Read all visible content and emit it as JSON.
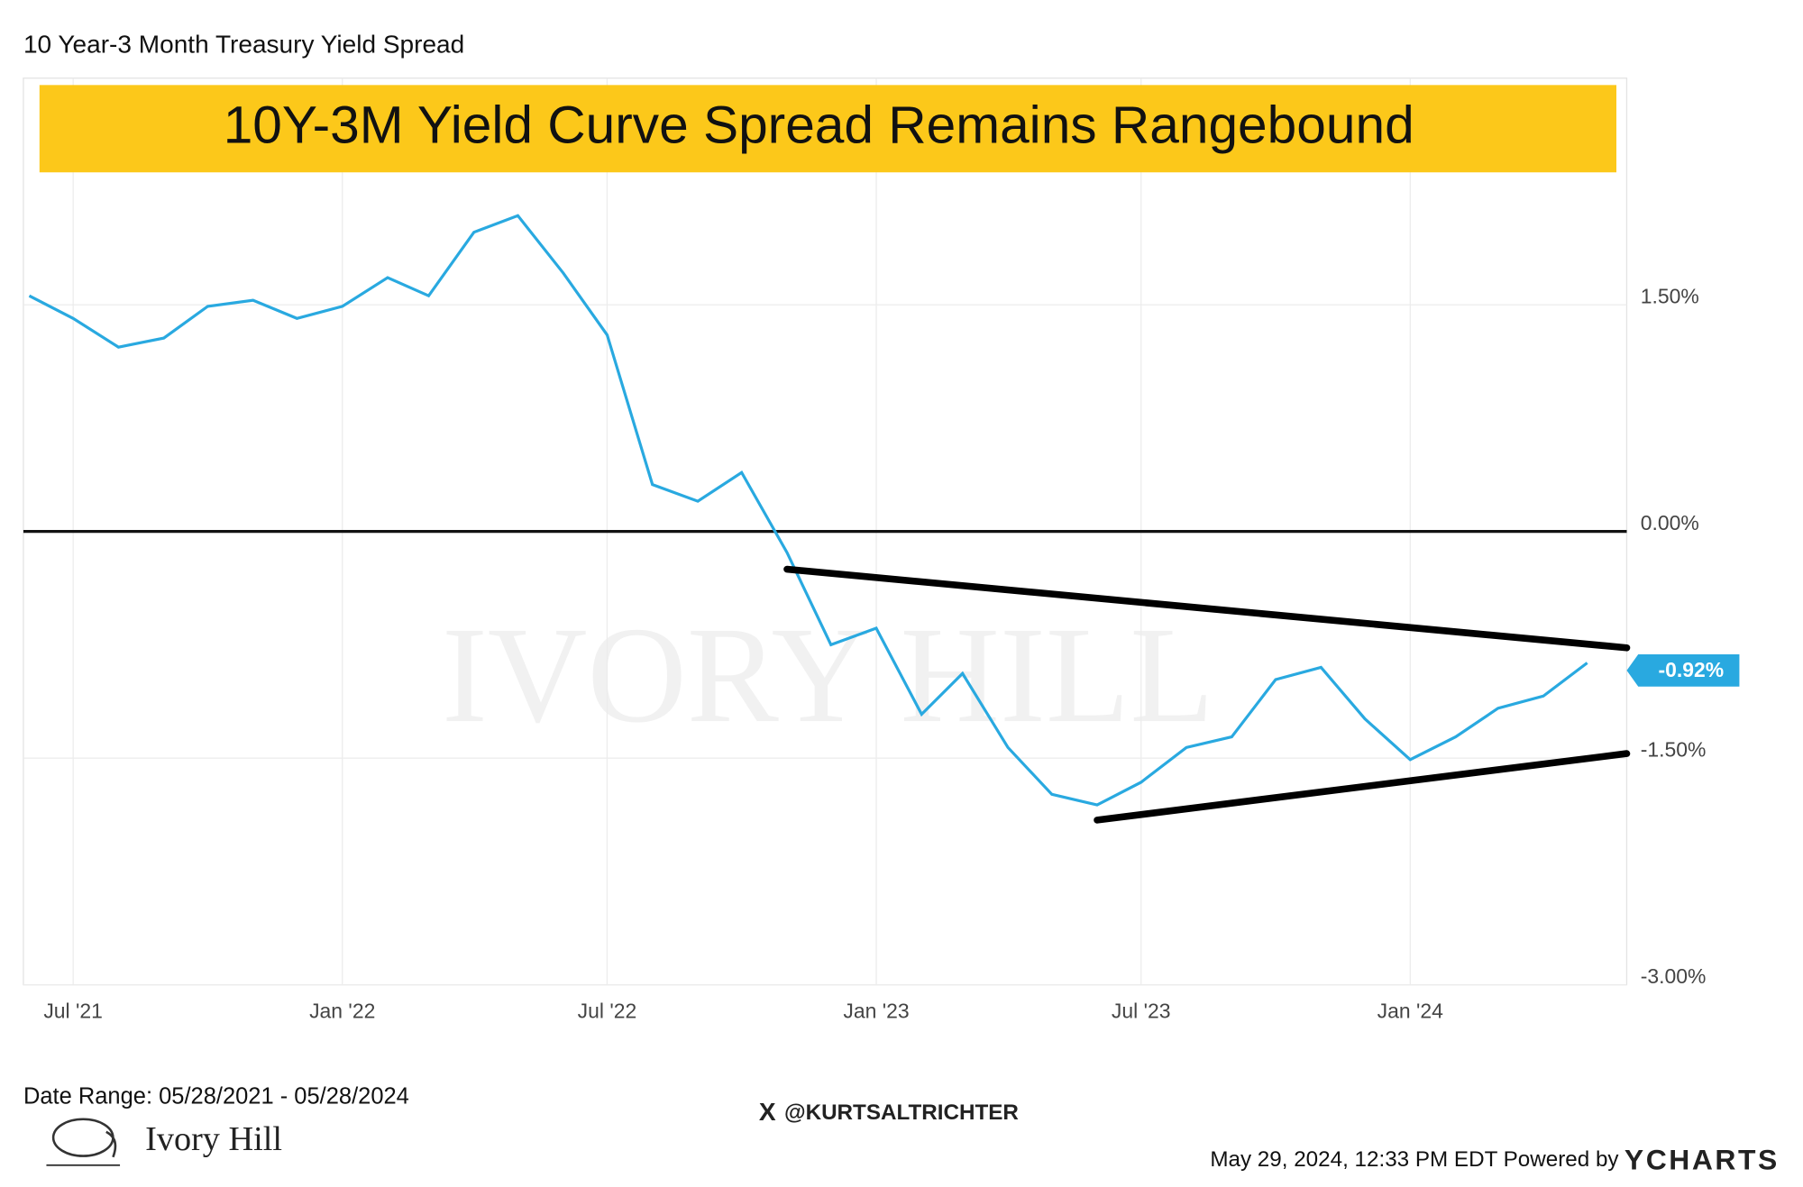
{
  "chart_data": {
    "type": "line",
    "title": "10 Year-3 Month Treasury Yield Spread",
    "banner": "10Y-3M Yield Curve Spread Remains Rangebound",
    "watermark": "IVORY HILL",
    "x": [
      "2021-06",
      "2021-07",
      "2021-08",
      "2021-09",
      "2021-10",
      "2021-11",
      "2021-12",
      "2022-01",
      "2022-02",
      "2022-03",
      "2022-04",
      "2022-05",
      "2022-06",
      "2022-07",
      "2022-08",
      "2022-09",
      "2022-10",
      "2022-11",
      "2022-12",
      "2023-01",
      "2023-02",
      "2023-03",
      "2023-04",
      "2023-05",
      "2023-06",
      "2023-07",
      "2023-08",
      "2023-09",
      "2023-10",
      "2023-11",
      "2023-12",
      "2024-01",
      "2024-02",
      "2024-03",
      "2024-04",
      "2024-05"
    ],
    "series": [
      {
        "name": "10 Year-3 Month Treasury Yield Spread",
        "color": "#29a9e0",
        "values": [
          1.56,
          1.41,
          1.22,
          1.28,
          1.49,
          1.53,
          1.41,
          1.49,
          1.68,
          1.56,
          1.98,
          2.09,
          1.71,
          1.3,
          0.31,
          0.2,
          0.39,
          -0.14,
          -0.75,
          -0.64,
          -1.21,
          -0.94,
          -1.43,
          -1.74,
          -1.81,
          -1.66,
          -1.43,
          -1.36,
          -0.98,
          -0.9,
          -1.24,
          -1.51,
          -1.36,
          -1.17,
          -1.09,
          -0.87
        ]
      }
    ],
    "last_value": {
      "value": -0.92,
      "label": "-0.92%"
    },
    "xlim": [
      "2021-05-28",
      "2024-05-28"
    ],
    "xticks": [
      {
        "value": "2021-07",
        "label": "Jul '21"
      },
      {
        "value": "2022-01",
        "label": "Jan '22"
      },
      {
        "value": "2022-07",
        "label": "Jul '22"
      },
      {
        "value": "2023-01",
        "label": "Jan '23"
      },
      {
        "value": "2023-07",
        "label": "Jul '23"
      },
      {
        "value": "2024-01",
        "label": "Jan '24"
      }
    ],
    "ylim": [
      -3,
      3
    ],
    "yticks": [
      {
        "value": -3,
        "label": "-3.00%"
      },
      {
        "value": -1.5,
        "label": "-1.50%"
      },
      {
        "value": 0,
        "label": "0.00%"
      },
      {
        "value": 1.5,
        "label": "1.50%"
      }
    ],
    "hline": 0,
    "trendlines": [
      {
        "x": [
          "2022-11",
          "2024-05-28"
        ],
        "y": [
          -0.25,
          -0.77
        ]
      },
      {
        "x": [
          "2023-06",
          "2024-05-28"
        ],
        "y": [
          -1.91,
          -1.47
        ]
      }
    ],
    "grid": true,
    "date_range": "Date Range: 05/28/2021 - 05/28/2024",
    "handle": "@KURTSALTRICHTER",
    "brand": "Ivory Hill",
    "footer": "May 29, 2024, 12:33 PM EDT Powered by",
    "provider": "YCHARTS"
  }
}
